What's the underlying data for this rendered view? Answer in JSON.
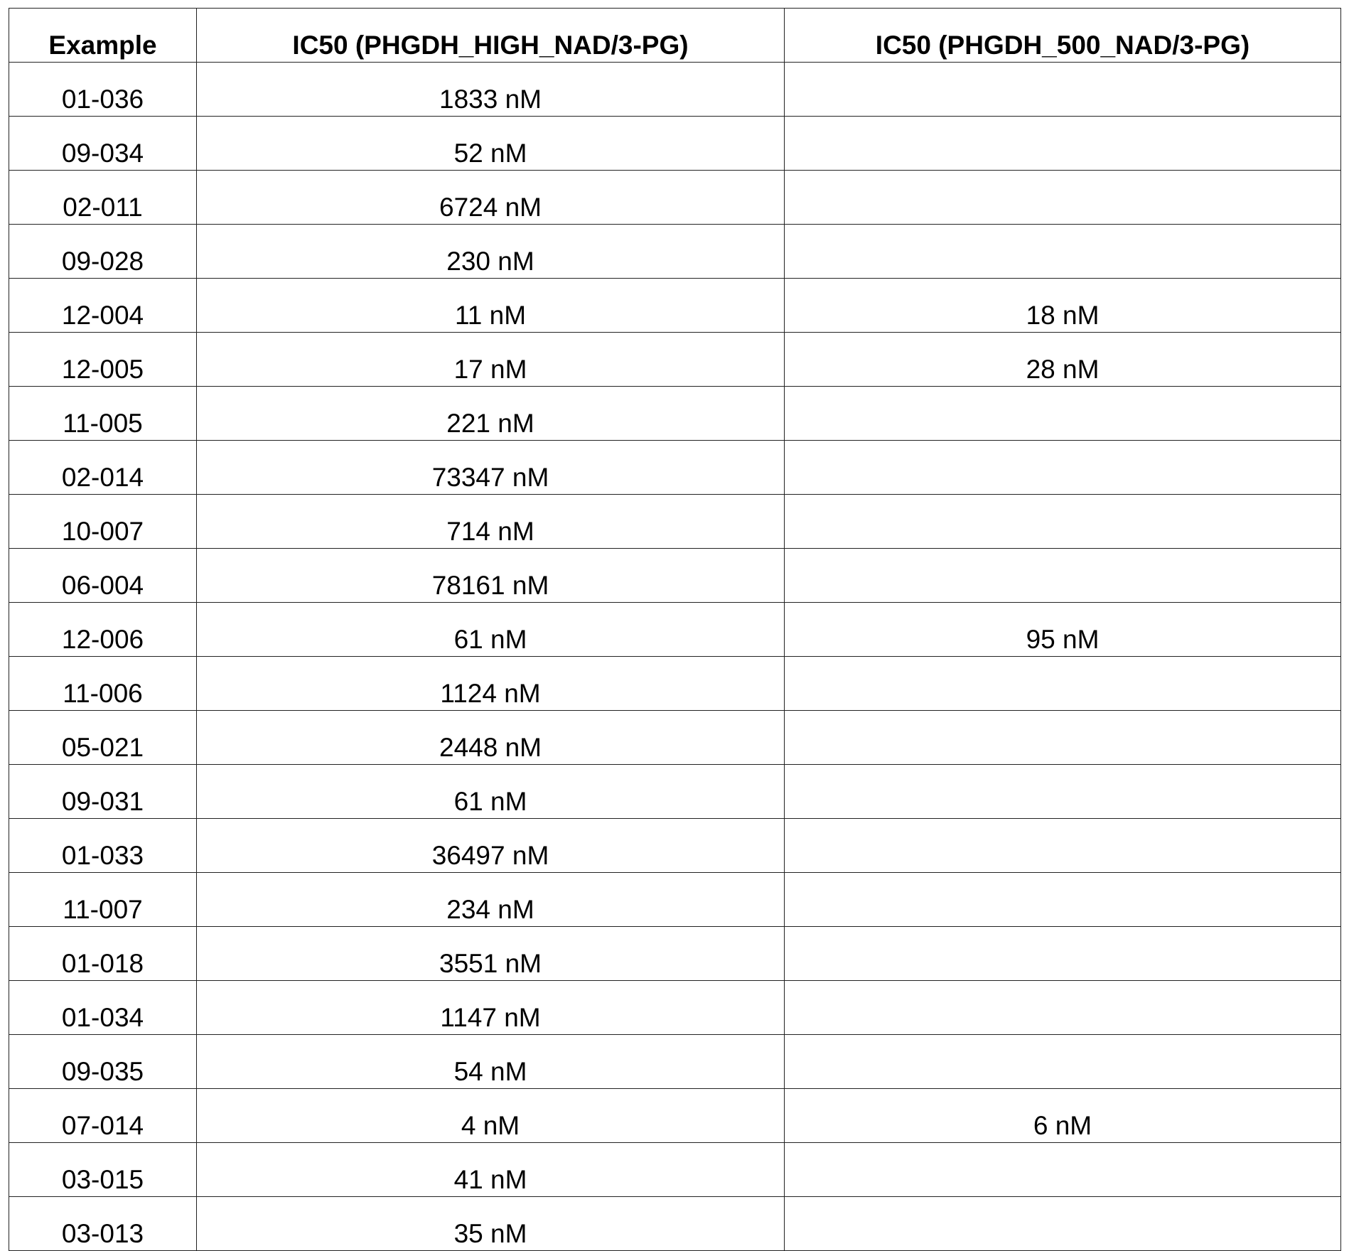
{
  "table": {
    "headers": [
      "Example",
      "IC50 (PHGDH_HIGH_NAD/3-PG)",
      "IC50 (PHGDH_500_NAD/3-PG)"
    ],
    "rows": [
      [
        "01-036",
        "1833 nM",
        ""
      ],
      [
        "09-034",
        "52 nM",
        ""
      ],
      [
        "02-011",
        "6724 nM",
        ""
      ],
      [
        "09-028",
        "230 nM",
        ""
      ],
      [
        "12-004",
        "11 nM",
        "18 nM"
      ],
      [
        "12-005",
        "17 nM",
        "28 nM"
      ],
      [
        "11-005",
        "221 nM",
        ""
      ],
      [
        "02-014",
        "73347 nM",
        ""
      ],
      [
        "10-007",
        "714 nM",
        ""
      ],
      [
        "06-004",
        "78161 nM",
        ""
      ],
      [
        "12-006",
        "61 nM",
        "95 nM"
      ],
      [
        "11-006",
        "1124 nM",
        ""
      ],
      [
        "05-021",
        "2448 nM",
        ""
      ],
      [
        "09-031",
        "61 nM",
        ""
      ],
      [
        "01-033",
        "36497 nM",
        ""
      ],
      [
        "11-007",
        "234 nM",
        ""
      ],
      [
        "01-018",
        "3551 nM",
        ""
      ],
      [
        "01-034",
        "1147 nM",
        ""
      ],
      [
        "09-035",
        "54 nM",
        ""
      ],
      [
        "07-014",
        "4 nM",
        "6 nM"
      ],
      [
        "03-015",
        "41 nM",
        ""
      ],
      [
        "03-013",
        "35 nM",
        ""
      ]
    ]
  }
}
